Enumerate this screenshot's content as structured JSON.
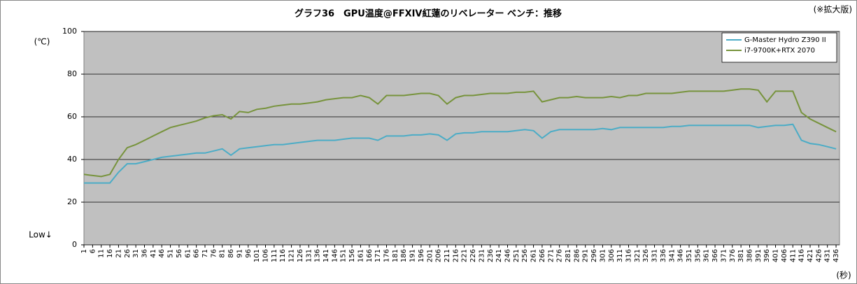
{
  "chart_data": {
    "type": "line",
    "title": "グラフ36　GPU温度@FFXIV紅蓮のリベレーター ベンチ：推移",
    "subtitle": "(※拡大版)",
    "y_label": "(℃)",
    "y_annotation": "Low↓",
    "x_label": "(秒)",
    "x": [
      1,
      6,
      11,
      16,
      21,
      26,
      31,
      36,
      41,
      46,
      51,
      56,
      61,
      66,
      71,
      76,
      81,
      86,
      91,
      96,
      101,
      106,
      111,
      116,
      121,
      126,
      131,
      136,
      141,
      146,
      151,
      156,
      161,
      166,
      171,
      176,
      181,
      186,
      191,
      196,
      201,
      206,
      211,
      216,
      221,
      226,
      231,
      236,
      241,
      246,
      251,
      256,
      261,
      266,
      271,
      276,
      281,
      286,
      291,
      296,
      301,
      306,
      311,
      316,
      321,
      326,
      331,
      336,
      341,
      346,
      351,
      356,
      361,
      366,
      371,
      376,
      381,
      386,
      391,
      396,
      401,
      406,
      411,
      416,
      421,
      426,
      431,
      436
    ],
    "xlim": [
      1,
      438
    ],
    "xticks": [
      1,
      6,
      11,
      16,
      21,
      26,
      31,
      36,
      41,
      46,
      51,
      56,
      61,
      66,
      71,
      76,
      81,
      86,
      91,
      96,
      101,
      106,
      111,
      116,
      121,
      126,
      131,
      136,
      141,
      146,
      151,
      156,
      161,
      166,
      171,
      176,
      181,
      186,
      191,
      196,
      201,
      206,
      211,
      216,
      221,
      226,
      231,
      236,
      241,
      246,
      251,
      256,
      261,
      266,
      271,
      276,
      281,
      286,
      291,
      296,
      301,
      306,
      311,
      316,
      321,
      326,
      331,
      336,
      341,
      346,
      351,
      356,
      361,
      366,
      371,
      376,
      381,
      386,
      391,
      396,
      401,
      406,
      411,
      416,
      421,
      426,
      431,
      436
    ],
    "ylim": [
      0,
      100
    ],
    "yticks": [
      0,
      20,
      40,
      60,
      80,
      100
    ],
    "grid": true,
    "legend": "top-right",
    "series": [
      {
        "name": "G-Master Hydro Z390 II",
        "color": "#4bacc6",
        "values": [
          29,
          29,
          29,
          29,
          34,
          38,
          38,
          39,
          40,
          41,
          41.5,
          42,
          42.5,
          43,
          43,
          44,
          45,
          42,
          45,
          45.5,
          46,
          46.5,
          47,
          47,
          47.5,
          48,
          48.5,
          49,
          49,
          49,
          49.5,
          50,
          50,
          50,
          49,
          51,
          51,
          51,
          51.5,
          51.5,
          52,
          51.5,
          49,
          52,
          52.5,
          52.5,
          53,
          53,
          53,
          53,
          53.5,
          54,
          53.5,
          50,
          53,
          54,
          54,
          54,
          54,
          54,
          54.5,
          54,
          55,
          55,
          55,
          55,
          55,
          55,
          55.5,
          55.5,
          56,
          56,
          56,
          56,
          56,
          56,
          56,
          56,
          55,
          55.5,
          56,
          56,
          56.5,
          49,
          47.5,
          47,
          46,
          45
        ]
      },
      {
        "name": "i7-9700K+RTX 2070",
        "color": "#77933c",
        "values": [
          33,
          32.5,
          32,
          33,
          40,
          45.5,
          47,
          49,
          51,
          53,
          55,
          56,
          57,
          58,
          59.5,
          60.5,
          61,
          59,
          62.5,
          62,
          63.5,
          64,
          65,
          65.5,
          66,
          66,
          66.5,
          67,
          68,
          68.5,
          69,
          69,
          70,
          69,
          66,
          70,
          70,
          70,
          70.5,
          71,
          71,
          70,
          66,
          69,
          70,
          70,
          70.5,
          71,
          71,
          71,
          71.5,
          71.5,
          72,
          67,
          68,
          69,
          69,
          69.5,
          69,
          69,
          69,
          69.5,
          69,
          70,
          70,
          71,
          71,
          71,
          71,
          71.5,
          72,
          72,
          72,
          72,
          72,
          72.5,
          73,
          73,
          72.5,
          67,
          72,
          72,
          72,
          62,
          59,
          57,
          55,
          53
        ]
      }
    ]
  }
}
